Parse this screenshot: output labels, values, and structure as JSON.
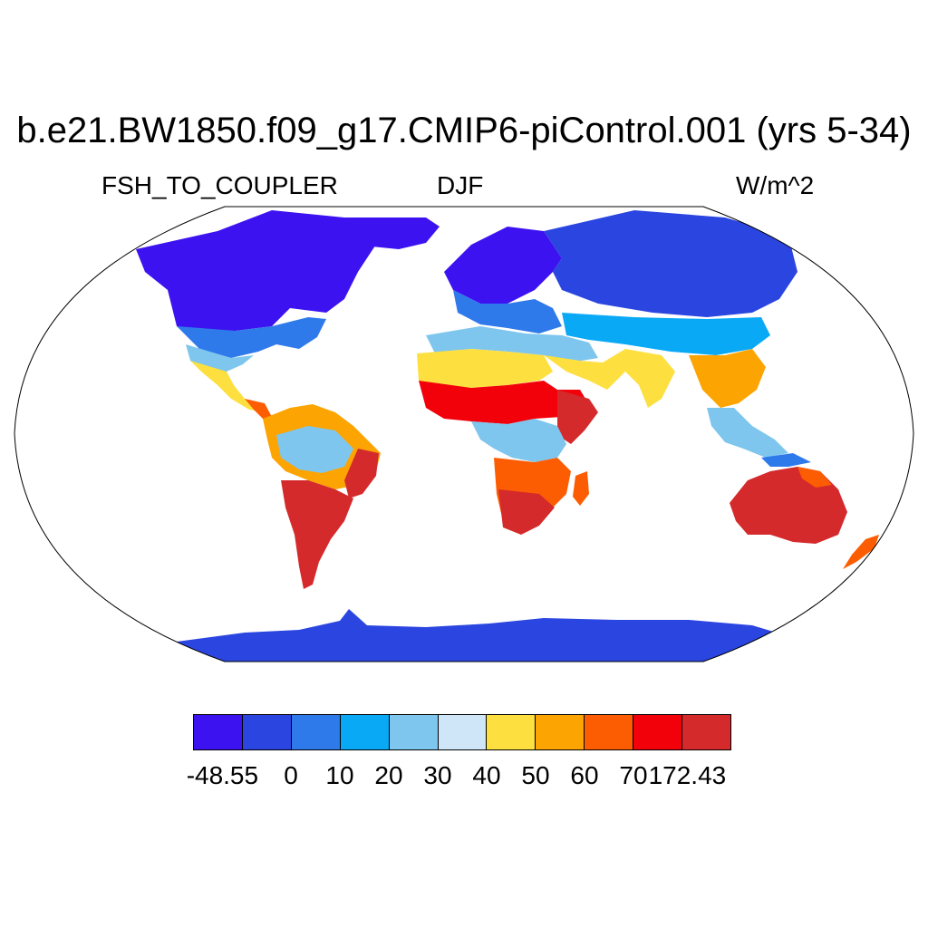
{
  "title": "b.e21.BW1850.f09_g17.CMIP6-piControl.001 (yrs 5-34)",
  "left_label": "FSH_TO_COUPLER",
  "center_label": "DJF",
  "right_label": "W/m^2",
  "projection": "Robinson",
  "colorbar": {
    "colors": [
      "#3d12f0",
      "#2b46e0",
      "#2f7aeb",
      "#0aa9f5",
      "#7fc6ee",
      "#cfe6f8",
      "#fde040",
      "#fca402",
      "#fd5d02",
      "#f3010b",
      "#d42a2c"
    ],
    "labels": [
      "-48.55",
      "0",
      "10",
      "20",
      "30",
      "40",
      "50",
      "60",
      "70",
      "172.43"
    ]
  }
}
